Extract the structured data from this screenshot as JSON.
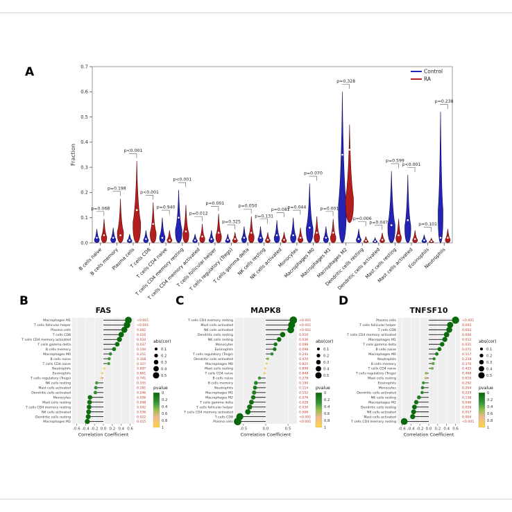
{
  "figure_labels": {
    "a": "A",
    "b": "B",
    "c": "C",
    "d": "D"
  },
  "chart_data": [
    {
      "id": "A",
      "type": "violin",
      "ylabel": "Fraction",
      "ylim": [
        0,
        0.7
      ],
      "yticks": [
        0.0,
        0.1,
        0.2,
        0.3,
        0.4,
        0.5,
        0.6,
        0.7
      ],
      "legend": [
        {
          "label": "Control",
          "color": "#2424b4"
        },
        {
          "label": "RA",
          "color": "#b31f1f"
        }
      ],
      "colors": {
        "control": "#2424b4",
        "control_stroke": "#12126e",
        "ra": "#b31f1f",
        "ra_stroke": "#690d0d"
      },
      "categories": [
        {
          "name": "B cells naive",
          "p": "p=0.068",
          "control": {
            "max": 0.055,
            "med": 0.02
          },
          "ra": {
            "max": 0.095,
            "med": 0.03
          }
        },
        {
          "name": "B cells memory",
          "p": "p=0.198",
          "control": {
            "max": 0.06,
            "med": 0.02
          },
          "ra": {
            "max": 0.175,
            "med": 0.03
          }
        },
        {
          "name": "Plasma cells",
          "p": "p<0.001",
          "control": {
            "max": 0.035,
            "med": 0.01
          },
          "ra": {
            "max": 0.325,
            "med": 0.13
          }
        },
        {
          "name": "T cells CD8",
          "p": "p<0.001",
          "control": {
            "max": 0.05,
            "med": 0.015
          },
          "ra": {
            "max": 0.16,
            "med": 0.075
          }
        },
        {
          "name": "T cells CD4 naive",
          "p": "p=0.940",
          "control": {
            "max": 0.1,
            "med": 0.02
          },
          "ra": {
            "max": 0.05,
            "med": 0.01
          }
        },
        {
          "name": "T cells CD4 memory resting",
          "p": "p<0.001",
          "control": {
            "max": 0.21,
            "med": 0.1
          },
          "ra": {
            "max": 0.15,
            "med": 0.045
          }
        },
        {
          "name": "T cells CD4 memory activated",
          "p": "p=0.012",
          "control": {
            "max": 0.035,
            "med": 0.01
          },
          "ra": {
            "max": 0.075,
            "med": 0.025
          }
        },
        {
          "name": "T cells follicular helper",
          "p": "p=0.001",
          "control": {
            "max": 0.05,
            "med": 0.015
          },
          "ra": {
            "max": 0.115,
            "med": 0.04
          }
        },
        {
          "name": "T cells regulatory (Tregs)",
          "p": "p=0.325",
          "control": {
            "max": 0.035,
            "med": 0.012
          },
          "ra": {
            "max": 0.042,
            "med": 0.015
          }
        },
        {
          "name": "T cells gamma delta",
          "p": "p=0.050",
          "control": {
            "max": 0.065,
            "med": 0.02
          },
          "ra": {
            "max": 0.105,
            "med": 0.04
          }
        },
        {
          "name": "NK cells resting",
          "p": "p=0.131",
          "control": {
            "max": 0.065,
            "med": 0.02
          },
          "ra": {
            "max": 0.042,
            "med": 0.012
          }
        },
        {
          "name": "NK cells activated",
          "p": "p=0.081",
          "control": {
            "max": 0.09,
            "med": 0.03
          },
          "ra": {
            "max": 0.042,
            "med": 0.012
          }
        },
        {
          "name": "Monocytes",
          "p": "p=0.044",
          "control": {
            "max": 0.1,
            "med": 0.03
          },
          "ra": {
            "max": 0.06,
            "med": 0.02
          }
        },
        {
          "name": "Macrophages M0",
          "p": "p=0.070",
          "control": {
            "max": 0.235,
            "med": 0.06
          },
          "ra": {
            "max": 0.105,
            "med": 0.04
          }
        },
        {
          "name": "Macrophages M1",
          "p": "p=0.001",
          "control": {
            "max": 0.065,
            "med": 0.02
          },
          "ra": {
            "max": 0.095,
            "med": 0.04
          }
        },
        {
          "name": "Macrophages M2",
          "p": "p=0.328",
          "control": {
            "max": 0.6,
            "med": 0.35
          },
          "ra": {
            "min": 0.08,
            "max": 0.47,
            "med": 0.37
          }
        },
        {
          "name": "Dendritic cells resting",
          "p": "p=0.006",
          "control": {
            "max": 0.055,
            "med": 0.015
          },
          "ra": {
            "max": 0.025,
            "med": 0.008
          }
        },
        {
          "name": "Dendritic cells activated",
          "p": "p=0.047",
          "control": {
            "max": 0.02,
            "med": 0.006
          },
          "ra": {
            "max": 0.04,
            "med": 0.012
          }
        },
        {
          "name": "Mast cells resting",
          "p": "p=0.599",
          "control": {
            "max": 0.285,
            "med": 0.07
          },
          "ra": {
            "max": 0.095,
            "med": 0.03
          }
        },
        {
          "name": "Mast cells activated",
          "p": "p<0.001",
          "control": {
            "max": 0.27,
            "med": 0.09,
            "w": 4.2
          },
          "ra": {
            "max": 0.05,
            "med": 0.015
          }
        },
        {
          "name": "Eosinophils",
          "p": "p=0.101",
          "control": {
            "max": 0.032,
            "med": 0.01
          },
          "ra": {
            "max": 0.018,
            "med": 0.006
          }
        },
        {
          "name": "Neutrophils",
          "p": "p=0.238",
          "control": {
            "max": 0.52,
            "med": 0.02,
            "w": 3.4
          },
          "ra": {
            "max": 0.055,
            "med": 0.02
          }
        }
      ]
    },
    {
      "id": "B",
      "type": "lollipop",
      "title": "FAS",
      "xlabel": "Correlation Coefficient",
      "xlim": [
        -0.7,
        0.7
      ],
      "xticks": [
        -0.6,
        -0.4,
        -0.2,
        0.0,
        0.2,
        0.4,
        0.6
      ],
      "legend_size": {
        "title": "abs(cor)",
        "values": [
          0.1,
          0.2,
          0.3,
          0.4,
          0.5
        ]
      },
      "legend_color": {
        "title": "pvalue",
        "ticks": [
          "0",
          "0.2",
          "0.4",
          "0.6",
          "0.8",
          "1"
        ]
      },
      "p_text_color": "#c0392b",
      "rows": [
        {
          "label": "Macrophages M1",
          "cor": 0.56,
          "p": 0.001,
          "p_text": "<0.001"
        },
        {
          "label": "T cells follicular helper",
          "cor": 0.53,
          "p": 0.001,
          "p_text": "<0.001"
        },
        {
          "label": "Plasma cells",
          "cor": 0.47,
          "p": 0.002,
          "p_text": "0.002"
        },
        {
          "label": "T cells CD8",
          "cor": 0.4,
          "p": 0.01,
          "p_text": "0.010"
        },
        {
          "label": "T cells CD4 memory activated",
          "cor": 0.36,
          "p": 0.02,
          "p_text": "0.020"
        },
        {
          "label": "T cells gamma delta",
          "cor": 0.31,
          "p": 0.037,
          "p_text": "0.037"
        },
        {
          "label": "B cells memory",
          "cor": 0.24,
          "p": 0.104,
          "p_text": "0.104"
        },
        {
          "label": "Macrophages M0",
          "cor": 0.16,
          "p": 0.251,
          "p_text": "0.251"
        },
        {
          "label": "B cells naive",
          "cor": 0.13,
          "p": 0.308,
          "p_text": "0.308"
        },
        {
          "label": "T cells CD4 naive",
          "cor": 0.12,
          "p": 0.327,
          "p_text": "0.327"
        },
        {
          "label": "Neutrophils",
          "cor": 0.02,
          "p": 0.897,
          "p_text": "0.897"
        },
        {
          "label": "Eosinophils",
          "cor": -0.02,
          "p": 0.861,
          "p_text": "0.861"
        },
        {
          "label": "T cells regulatory (Tregs)",
          "cor": -0.04,
          "p": 0.741,
          "p_text": "0.741"
        },
        {
          "label": "NK cells resting",
          "cor": -0.15,
          "p": 0.335,
          "p_text": "0.335"
        },
        {
          "label": "Mast cells activated",
          "cor": -0.17,
          "p": 0.281,
          "p_text": "0.281"
        },
        {
          "label": "Dendritic cells activated",
          "cor": -0.18,
          "p": 0.246,
          "p_text": "0.246"
        },
        {
          "label": "Monocytes",
          "cor": -0.3,
          "p": 0.056,
          "p_text": "0.056"
        },
        {
          "label": "Mast cells resting",
          "cor": -0.31,
          "p": 0.048,
          "p_text": "0.048"
        },
        {
          "label": "T cells CD4 memory resting",
          "cor": -0.32,
          "p": 0.042,
          "p_text": "0.042"
        },
        {
          "label": "NK cells activated",
          "cor": -0.33,
          "p": 0.036,
          "p_text": "0.036"
        },
        {
          "label": "Dendritic cells resting",
          "cor": -0.34,
          "p": 0.022,
          "p_text": "0.022"
        },
        {
          "label": "Macrophages M2",
          "cor": -0.36,
          "p": 0.015,
          "p_text": "0.015"
        }
      ]
    },
    {
      "id": "C",
      "type": "lollipop",
      "title": "MAPK8",
      "xlabel": "Correlation Coefficient",
      "xlim": [
        -0.7,
        0.7
      ],
      "xticks": [
        -0.5,
        0.0,
        0.5
      ],
      "legend_size": {
        "title": "abs(cor)",
        "values": [
          0.1,
          0.2,
          0.3,
          0.4,
          0.5
        ]
      },
      "legend_color": {
        "title": "pvalue",
        "ticks": [
          "0",
          "0.2",
          "0.4",
          "0.6",
          "0.8",
          "1"
        ]
      },
      "p_text_color": "#c0392b",
      "rows": [
        {
          "label": "T cells CD4 memory resting",
          "cor": 0.62,
          "p": 0.001,
          "p_text": "<0.001"
        },
        {
          "label": "Mast cells activated",
          "cor": 0.58,
          "p": 0.001,
          "p_text": "<0.001"
        },
        {
          "label": "NK cells activated",
          "cor": 0.56,
          "p": 0.001,
          "p_text": "<0.001"
        },
        {
          "label": "Dendritic cells resting",
          "cor": 0.38,
          "p": 0.01,
          "p_text": "0.010"
        },
        {
          "label": "NK cells resting",
          "cor": 0.3,
          "p": 0.036,
          "p_text": "0.036"
        },
        {
          "label": "Monocytes",
          "cor": 0.22,
          "p": 0.096,
          "p_text": "0.096"
        },
        {
          "label": "Eosinophils",
          "cor": 0.2,
          "p": 0.098,
          "p_text": "0.098"
        },
        {
          "label": "T cells regulatory (Tregs)",
          "cor": 0.14,
          "p": 0.241,
          "p_text": "0.241"
        },
        {
          "label": "Dendritic cells activated",
          "cor": 0.05,
          "p": 0.47,
          "p_text": "0.470"
        },
        {
          "label": "Macrophages M0",
          "cor": 0.02,
          "p": 0.821,
          "p_text": "0.821"
        },
        {
          "label": "Mast cells resting",
          "cor": -0.01,
          "p": 0.898,
          "p_text": "0.898"
        },
        {
          "label": "T cells CD4 naive",
          "cor": -0.03,
          "p": 0.848,
          "p_text": "0.848"
        },
        {
          "label": "B cells naive",
          "cor": -0.14,
          "p": 0.278,
          "p_text": "0.278"
        },
        {
          "label": "B cells memory",
          "cor": -0.22,
          "p": 0.19,
          "p_text": "0.190"
        },
        {
          "label": "Neutrophils",
          "cor": -0.24,
          "p": 0.114,
          "p_text": "0.114"
        },
        {
          "label": "Macrophages M1",
          "cor": -0.26,
          "p": 0.152,
          "p_text": "0.152"
        },
        {
          "label": "Macrophages M2",
          "cor": -0.28,
          "p": 0.076,
          "p_text": "0.076"
        },
        {
          "label": "T cells gamma delta",
          "cor": -0.32,
          "p": 0.028,
          "p_text": "0.028"
        },
        {
          "label": "T cells follicular helper",
          "cor": -0.36,
          "p": 0.03,
          "p_text": "0.030"
        },
        {
          "label": "T cells CD4 memory activated",
          "cor": -0.4,
          "p": 0.006,
          "p_text": "0.006"
        },
        {
          "label": "T cells CD8",
          "cor": -0.58,
          "p": 0.001,
          "p_text": "<0.001"
        },
        {
          "label": "Plasma cells",
          "cor": -0.63,
          "p": 0.001,
          "p_text": "<0.001"
        }
      ]
    },
    {
      "id": "D",
      "type": "lollipop",
      "title": "TNFSF10",
      "xlabel": "Correlation Coefficient",
      "xlim": [
        -0.7,
        0.7
      ],
      "xticks": [
        -0.6,
        -0.4,
        -0.2,
        0.0,
        0.2,
        0.4,
        0.6
      ],
      "legend_size": {
        "title": "abs(cor)",
        "values": [
          0.1,
          0.2,
          0.3,
          0.4,
          0.5
        ]
      },
      "legend_color": {
        "title": "pvalue",
        "ticks": [
          "0",
          "0.2",
          "0.4",
          "0.6",
          "0.8",
          "1"
        ]
      },
      "p_text_color": "#c0392b",
      "rows": [
        {
          "label": "Plasma cells",
          "cor": 0.6,
          "p": 0.001,
          "p_text": "<0.001"
        },
        {
          "label": "T cells follicular helper",
          "cor": 0.48,
          "p": 0.002,
          "p_text": "0.002"
        },
        {
          "label": "T cells CD8",
          "cor": 0.46,
          "p": 0.002,
          "p_text": "0.002"
        },
        {
          "label": "T cells CD4 memory activated",
          "cor": 0.4,
          "p": 0.006,
          "p_text": "0.006"
        },
        {
          "label": "Macrophages M1",
          "cor": 0.36,
          "p": 0.012,
          "p_text": "0.012"
        },
        {
          "label": "T cells gamma delta",
          "cor": 0.3,
          "p": 0.031,
          "p_text": "0.031"
        },
        {
          "label": "B cells naive",
          "cor": 0.24,
          "p": 0.071,
          "p_text": "0.071"
        },
        {
          "label": "Macrophages M0",
          "cor": 0.18,
          "p": 0.117,
          "p_text": "0.117"
        },
        {
          "label": "Neutrophils",
          "cor": 0.12,
          "p": 0.218,
          "p_text": "0.218"
        },
        {
          "label": "B cells memory",
          "cor": 0.1,
          "p": 0.376,
          "p_text": "0.376"
        },
        {
          "label": "T cells CD4 naive",
          "cor": 0.08,
          "p": 0.425,
          "p_text": "0.425"
        },
        {
          "label": "T cells regulatory (Tregs)",
          "cor": -0.06,
          "p": 0.468,
          "p_text": "0.468"
        },
        {
          "label": "Mast cells resting",
          "cor": -0.07,
          "p": 0.616,
          "p_text": "0.616"
        },
        {
          "label": "Eosinophils",
          "cor": -0.12,
          "p": 0.292,
          "p_text": "0.292"
        },
        {
          "label": "Monocytes",
          "cor": -0.14,
          "p": 0.204,
          "p_text": "0.204"
        },
        {
          "label": "Dendritic cells activated",
          "cor": -0.15,
          "p": 0.229,
          "p_text": "0.229"
        },
        {
          "label": "NK cells resting",
          "cor": -0.22,
          "p": 0.138,
          "p_text": "0.138"
        },
        {
          "label": "Macrophages M2",
          "cor": -0.28,
          "p": 0.049,
          "p_text": "0.049"
        },
        {
          "label": "Dendritic cells resting",
          "cor": -0.32,
          "p": 0.026,
          "p_text": "0.026"
        },
        {
          "label": "NK cells activated",
          "cor": -0.34,
          "p": 0.017,
          "p_text": "0.017"
        },
        {
          "label": "Mast cells activated",
          "cor": -0.36,
          "p": 0.004,
          "p_text": "0.004"
        },
        {
          "label": "T cells CD4 memory resting",
          "cor": -0.55,
          "p": 0.001,
          "p_text": "<0.001"
        }
      ]
    }
  ]
}
